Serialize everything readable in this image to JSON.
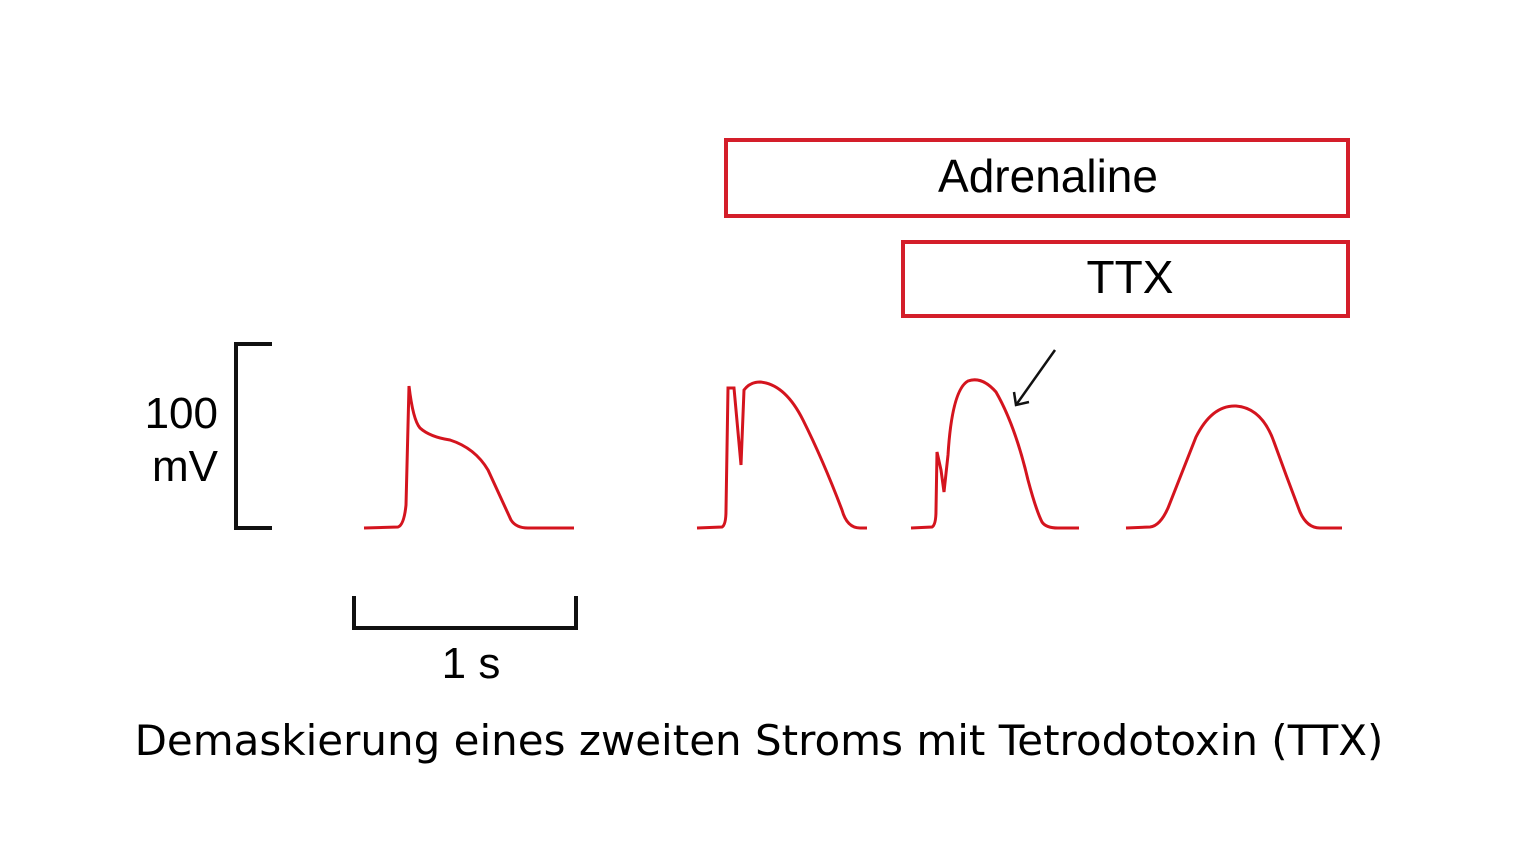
{
  "drug_bars": [
    {
      "label": "Adrenaline"
    },
    {
      "label": "TTX"
    }
  ],
  "scale_bar": {
    "voltage_value": "100",
    "voltage_unit": "mV",
    "time_label": "1 s"
  },
  "caption": "Demaskierung eines zweiten Stroms mit Tetrodotoxin (TTX)",
  "colors": {
    "trace": "#d4141e",
    "bar_border": "#d41e2a",
    "text": "#000000"
  }
}
